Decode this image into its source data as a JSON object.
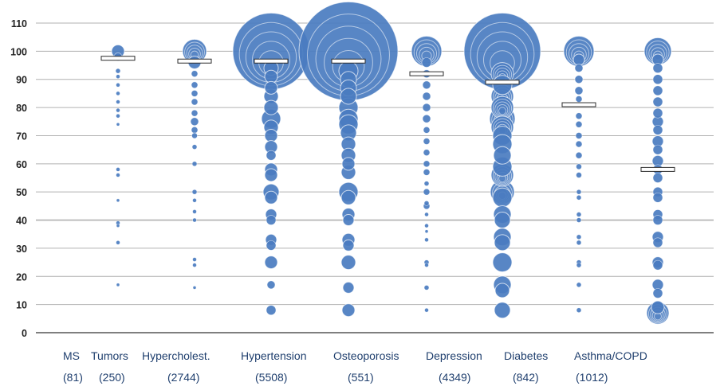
{
  "chart_data": {
    "type": "scatter",
    "title": "",
    "xlabel": "",
    "ylabel": "",
    "ylim": [
      0,
      110
    ],
    "yticks": [
      "0",
      "10",
      "20",
      "30",
      "40",
      "50",
      "60",
      "70",
      "80",
      "90",
      "100",
      "110"
    ],
    "grid": true,
    "colors": {
      "bubble": "#4a7cc0",
      "grid": "#b0b0b0",
      "axis_text": "#222222",
      "category_text": "#1f3f6e"
    },
    "categories": [
      {
        "name": "MS",
        "count": "(81)",
        "median": null,
        "bubbles": []
      },
      {
        "name": "Tumors",
        "count": "(250)",
        "median": 97.5,
        "bubbles": [
          [
            100,
            8
          ],
          [
            98,
            5
          ],
          [
            93,
            3
          ],
          [
            91,
            2.5
          ],
          [
            88,
            2.5
          ],
          [
            85,
            2.5
          ],
          [
            82,
            2.5
          ],
          [
            79,
            2.5
          ],
          [
            77,
            2.5
          ],
          [
            74,
            2
          ],
          [
            58,
            2.5
          ],
          [
            56,
            2.5
          ],
          [
            47,
            2
          ],
          [
            39,
            2.5
          ],
          [
            38,
            2
          ],
          [
            32,
            2.5
          ],
          [
            17,
            2
          ]
        ]
      },
      {
        "name": "Hypercholest.",
        "count": "(2744)",
        "median": 96.5,
        "bubbles": [
          [
            100,
            15
          ],
          [
            96,
            8
          ],
          [
            92,
            4
          ],
          [
            88,
            4
          ],
          [
            85,
            4
          ],
          [
            82,
            4
          ],
          [
            78,
            4
          ],
          [
            75,
            5
          ],
          [
            72,
            4
          ],
          [
            70,
            3.5
          ],
          [
            66,
            3
          ],
          [
            60,
            3
          ],
          [
            50,
            3
          ],
          [
            47,
            2.5
          ],
          [
            43,
            2.5
          ],
          [
            40,
            2.5
          ],
          [
            26,
            2.5
          ],
          [
            24,
            2.5
          ],
          [
            16,
            2
          ]
        ]
      },
      {
        "name": "Hypertension",
        "count": "(5508)",
        "median": 96.5,
        "bubbles": [
          [
            100,
            48
          ],
          [
            94,
            9
          ],
          [
            91,
            8
          ],
          [
            87,
            8
          ],
          [
            84,
            9
          ],
          [
            80,
            9
          ],
          [
            76,
            12
          ],
          [
            73,
            9
          ],
          [
            70,
            8
          ],
          [
            66,
            8
          ],
          [
            63,
            6
          ],
          [
            58,
            8
          ],
          [
            56,
            8
          ],
          [
            50,
            10
          ],
          [
            48,
            8
          ],
          [
            42,
            7
          ],
          [
            40,
            6
          ],
          [
            33,
            7
          ],
          [
            31,
            6
          ],
          [
            25,
            8
          ],
          [
            17,
            5
          ],
          [
            8,
            6
          ]
        ]
      },
      {
        "name": "Osteoporosis",
        "count": "(551)",
        "median": 96.5,
        "bubbles": [
          [
            100,
            62
          ],
          [
            93,
            12
          ],
          [
            90,
            10
          ],
          [
            87,
            10
          ],
          [
            84,
            10
          ],
          [
            80,
            12
          ],
          [
            76,
            12
          ],
          [
            74,
            12
          ],
          [
            71,
            10
          ],
          [
            67,
            9
          ],
          [
            63,
            9
          ],
          [
            60,
            8
          ],
          [
            57,
            9
          ],
          [
            50,
            12
          ],
          [
            48,
            9
          ],
          [
            42,
            8
          ],
          [
            40,
            7
          ],
          [
            33,
            8
          ],
          [
            31,
            7
          ],
          [
            25,
            9
          ],
          [
            16,
            7
          ],
          [
            8,
            8
          ]
        ]
      },
      {
        "name": "Depression",
        "count": "(4349)",
        "median": 92,
        "bubbles": [
          [
            100,
            19
          ],
          [
            96,
            6
          ],
          [
            92,
            5
          ],
          [
            88,
            5
          ],
          [
            84,
            5
          ],
          [
            80,
            5
          ],
          [
            76,
            5
          ],
          [
            72,
            4
          ],
          [
            68,
            4
          ],
          [
            64,
            4
          ],
          [
            60,
            4
          ],
          [
            57,
            4
          ],
          [
            53,
            3
          ],
          [
            50,
            4
          ],
          [
            46,
            3
          ],
          [
            45,
            4
          ],
          [
            42,
            2.5
          ],
          [
            38,
            2.5
          ],
          [
            36,
            2
          ],
          [
            33,
            2.5
          ],
          [
            25,
            3
          ],
          [
            24,
            2.5
          ],
          [
            16,
            3
          ],
          [
            8,
            2.5
          ]
        ]
      },
      {
        "name": "Diabetes",
        "count": "(842)",
        "median": 89,
        "bubbles": [
          [
            100,
            48
          ],
          [
            92,
            14
          ],
          [
            88,
            12
          ],
          [
            84,
            14
          ],
          [
            80,
            14
          ],
          [
            76,
            16
          ],
          [
            73,
            14
          ],
          [
            70,
            12
          ],
          [
            67,
            12
          ],
          [
            63,
            11
          ],
          [
            59,
            12
          ],
          [
            56,
            14
          ],
          [
            50,
            15
          ],
          [
            48,
            12
          ],
          [
            42,
            11
          ],
          [
            40,
            10
          ],
          [
            34,
            11
          ],
          [
            32,
            10
          ],
          [
            25,
            12
          ],
          [
            17,
            11
          ],
          [
            15,
            9
          ],
          [
            8,
            10
          ]
        ]
      },
      {
        "name": "Asthma/COPD",
        "count": "(1012)",
        "median": 81,
        "bubbles": [
          [
            100,
            19
          ],
          [
            97,
            7
          ],
          [
            94,
            5
          ],
          [
            90,
            5
          ],
          [
            86,
            5
          ],
          [
            83,
            4
          ],
          [
            77,
            4
          ],
          [
            74,
            4
          ],
          [
            70,
            4
          ],
          [
            67,
            4
          ],
          [
            63,
            4
          ],
          [
            59,
            3.5
          ],
          [
            56,
            3.5
          ],
          [
            50,
            3
          ],
          [
            48,
            3
          ],
          [
            42,
            3
          ],
          [
            40,
            3
          ],
          [
            34,
            3
          ],
          [
            32,
            3
          ],
          [
            25,
            3
          ],
          [
            24,
            3
          ],
          [
            17,
            3
          ],
          [
            8,
            3
          ]
        ]
      },
      {
        "name": "",
        "count": "",
        "median": 58,
        "bubbles": [
          [
            100,
            17
          ],
          [
            97,
            7
          ],
          [
            94,
            6
          ],
          [
            90,
            6
          ],
          [
            86,
            6
          ],
          [
            82,
            6
          ],
          [
            78,
            6
          ],
          [
            75,
            7
          ],
          [
            72,
            6
          ],
          [
            68,
            7
          ],
          [
            65,
            6
          ],
          [
            61,
            7
          ],
          [
            58,
            6
          ],
          [
            55,
            6
          ],
          [
            50,
            6
          ],
          [
            48,
            6
          ],
          [
            42,
            6
          ],
          [
            40,
            6
          ],
          [
            34,
            7
          ],
          [
            32,
            6
          ],
          [
            25,
            7
          ],
          [
            24,
            6
          ],
          [
            17,
            7
          ],
          [
            14,
            6
          ],
          [
            9,
            8
          ],
          [
            7,
            14
          ]
        ]
      }
    ]
  }
}
